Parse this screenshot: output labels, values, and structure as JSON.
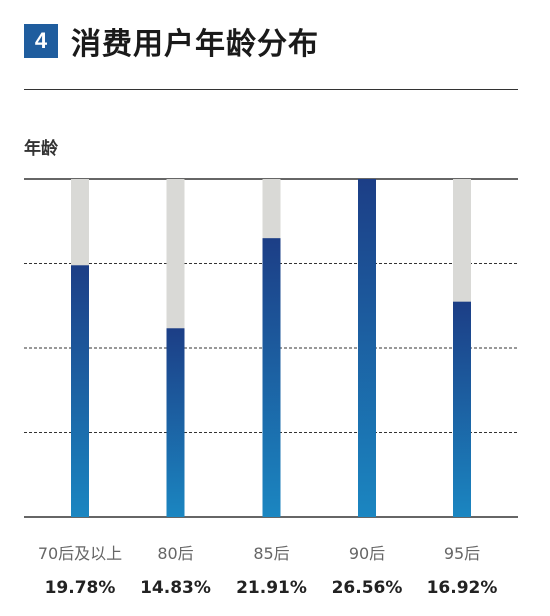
{
  "header": {
    "badge_number": "4",
    "title": "消费用户年龄分布"
  },
  "colors": {
    "badge": "#1f5d9e",
    "track": "#d9d9d6",
    "bar_top": "#1c3e86",
    "bar_bottom": "#1b86c1",
    "axis_line": "#333333",
    "grid_line": "#333333"
  },
  "chart_data": {
    "type": "bar",
    "ylabel": "年龄",
    "categories": [
      "70后及以上",
      "80后",
      "85后",
      "90后",
      "95后"
    ],
    "values": [
      19.78,
      14.83,
      21.91,
      26.56,
      16.92
    ],
    "value_labels": [
      "19.78%",
      "14.83%",
      "21.91%",
      "26.56%",
      "16.92%"
    ],
    "ylim": [
      0,
      26.56
    ],
    "grid": "dashed",
    "horizontal_gridlines": 3
  }
}
